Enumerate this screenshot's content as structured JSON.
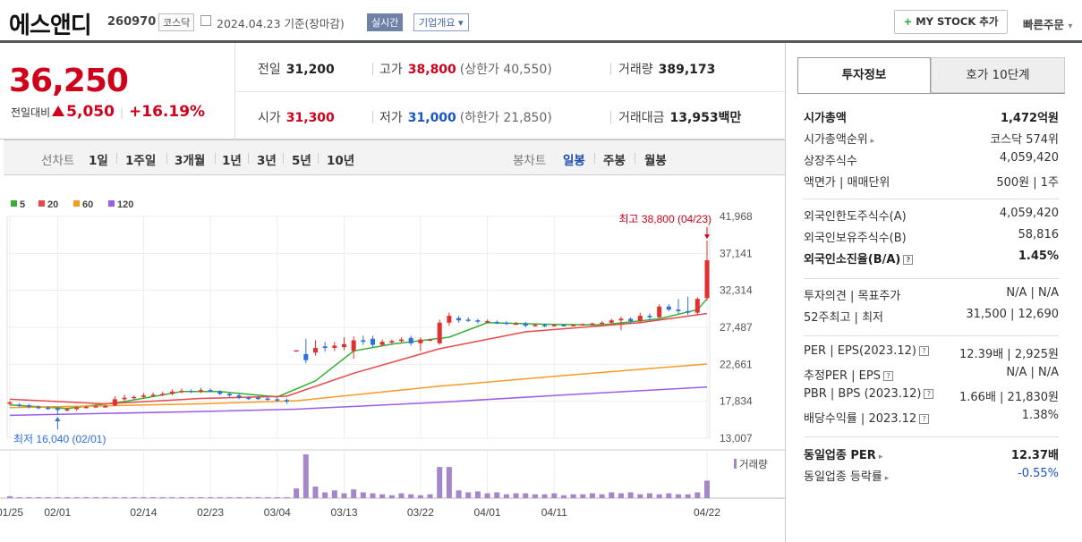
{
  "header": {
    "name": "에스앤디",
    "code": "260970",
    "market": "코스닥",
    "date": "2024.04.23 기준(장마감)",
    "realtime": "실시간",
    "overview": "기업개요",
    "my_stock": "MY STOCK 추가",
    "quick_order": "빠른주문"
  },
  "price": {
    "current": "36,250",
    "change_label": "전일대비",
    "change": "5,050",
    "change_pct": "+16.19%",
    "prev_close_label": "전일",
    "prev_close": "31,200",
    "high_label": "고가",
    "high": "38,800",
    "upper_limit": "(상한가 40,550)",
    "volume_label": "거래량",
    "volume": "389,173",
    "open_label": "시가",
    "open": "31,300",
    "low_label": "저가",
    "low": "31,000",
    "lower_limit": "(하한가 21,850)",
    "value_label": "거래대금",
    "value": "13,953",
    "value_unit": "백만"
  },
  "tabs": {
    "line_label": "선차트",
    "periods": [
      "1일",
      "1주일",
      "3개월",
      "1년",
      "3년",
      "5년",
      "10년"
    ],
    "candle_label": "봉차트",
    "candles": [
      "일봉",
      "주봉",
      "월봉"
    ],
    "selected_candle": "일봉"
  },
  "chart_data": {
    "type": "candlestick",
    "legend": [
      "5",
      "20",
      "60",
      "120"
    ],
    "legend_colors": [
      "#35b035",
      "#e84848",
      "#f59a23",
      "#9b5de5"
    ],
    "y_ticks": [
      "41,968",
      "37,141",
      "32,314",
      "27,487",
      "22,661",
      "17,834",
      "13,007"
    ],
    "ylim": [
      13007,
      41968
    ],
    "x_ticks": [
      "01/25",
      "02/01",
      "02/14",
      "02/23",
      "03/04",
      "03/13",
      "03/22",
      "04/01",
      "04/11",
      "04/22"
    ],
    "high_annotation": "최고 38,800 (04/23)",
    "low_annotation": "최저 16,040 (02/01)",
    "volume_label": "거래량",
    "candles": [
      {
        "o": 17500,
        "c": 17700,
        "h": 17900,
        "l": 17300
      },
      {
        "o": 17400,
        "c": 17300,
        "h": 17600,
        "l": 17100
      },
      {
        "o": 17300,
        "c": 17100,
        "h": 17500,
        "l": 16900
      },
      {
        "o": 17100,
        "c": 17000,
        "h": 17300,
        "l": 16800
      },
      {
        "o": 17000,
        "c": 16900,
        "h": 17200,
        "l": 16700
      },
      {
        "o": 16900,
        "c": 16700,
        "h": 17100,
        "l": 16040
      },
      {
        "o": 16700,
        "c": 16800,
        "h": 17000,
        "l": 16500
      },
      {
        "o": 16800,
        "c": 17000,
        "h": 17200,
        "l": 16600
      },
      {
        "o": 17000,
        "c": 17100,
        "h": 17300,
        "l": 16900
      },
      {
        "o": 17100,
        "c": 17200,
        "h": 17400,
        "l": 17000
      },
      {
        "o": 17200,
        "c": 17200,
        "h": 17400,
        "l": 17000
      },
      {
        "o": 17300,
        "c": 18100,
        "h": 18500,
        "l": 17200
      },
      {
        "o": 18100,
        "c": 18300,
        "h": 18700,
        "l": 17900
      },
      {
        "o": 18300,
        "c": 18400,
        "h": 18600,
        "l": 18100
      },
      {
        "o": 18400,
        "c": 18600,
        "h": 18900,
        "l": 18200
      },
      {
        "o": 18600,
        "c": 18700,
        "h": 19000,
        "l": 18400
      },
      {
        "o": 18700,
        "c": 18800,
        "h": 19100,
        "l": 18500
      },
      {
        "o": 18800,
        "c": 19100,
        "h": 19400,
        "l": 18600
      },
      {
        "o": 19100,
        "c": 19200,
        "h": 19500,
        "l": 18900
      },
      {
        "o": 19200,
        "c": 19100,
        "h": 19400,
        "l": 18900
      },
      {
        "o": 19100,
        "c": 19300,
        "h": 19600,
        "l": 18900
      },
      {
        "o": 19300,
        "c": 19200,
        "h": 19500,
        "l": 19000
      },
      {
        "o": 19100,
        "c": 18800,
        "h": 19300,
        "l": 18600
      },
      {
        "o": 18800,
        "c": 18600,
        "h": 19000,
        "l": 18400
      },
      {
        "o": 18600,
        "c": 18300,
        "h": 18800,
        "l": 18100
      },
      {
        "o": 18300,
        "c": 18200,
        "h": 18500,
        "l": 18000
      },
      {
        "o": 18300,
        "c": 18200,
        "h": 18500,
        "l": 18000
      },
      {
        "o": 18200,
        "c": 18100,
        "h": 18400,
        "l": 17900
      },
      {
        "o": 18100,
        "c": 18000,
        "h": 18300,
        "l": 17800
      },
      {
        "o": 18000,
        "c": 17800,
        "h": 18200,
        "l": 17500
      },
      {
        "o": 24500,
        "c": 24500,
        "h": 24500,
        "l": 24500
      },
      {
        "o": 24000,
        "c": 23200,
        "h": 26000,
        "l": 22800
      },
      {
        "o": 24200,
        "c": 24800,
        "h": 25800,
        "l": 23800
      },
      {
        "o": 25000,
        "c": 24800,
        "h": 25600,
        "l": 24300
      },
      {
        "o": 24800,
        "c": 25100,
        "h": 25600,
        "l": 24400
      },
      {
        "o": 24900,
        "c": 25300,
        "h": 26200,
        "l": 24500
      },
      {
        "o": 24400,
        "c": 25800,
        "h": 26300,
        "l": 23400
      },
      {
        "o": 25800,
        "c": 25600,
        "h": 26400,
        "l": 25200
      },
      {
        "o": 26000,
        "c": 25200,
        "h": 26400,
        "l": 24900
      },
      {
        "o": 25200,
        "c": 25600,
        "h": 25900,
        "l": 25000
      },
      {
        "o": 25500,
        "c": 25700,
        "h": 25900,
        "l": 25300
      },
      {
        "o": 25700,
        "c": 25900,
        "h": 26200,
        "l": 25500
      },
      {
        "o": 26100,
        "c": 25400,
        "h": 26400,
        "l": 25100
      },
      {
        "o": 25400,
        "c": 25900,
        "h": 26200,
        "l": 24400
      },
      {
        "o": 25900,
        "c": 25900,
        "h": 26000,
        "l": 25800
      },
      {
        "o": 25400,
        "c": 28100,
        "h": 28500,
        "l": 25200
      },
      {
        "o": 28100,
        "c": 29000,
        "h": 29400,
        "l": 27700
      },
      {
        "o": 28700,
        "c": 28400,
        "h": 29000,
        "l": 28100
      },
      {
        "o": 28500,
        "c": 28400,
        "h": 28800,
        "l": 28200
      },
      {
        "o": 28400,
        "c": 28300,
        "h": 28600,
        "l": 28000
      },
      {
        "o": 28300,
        "c": 28300,
        "h": 28500,
        "l": 28100
      },
      {
        "o": 28200,
        "c": 28100,
        "h": 28400,
        "l": 27900
      },
      {
        "o": 28100,
        "c": 28000,
        "h": 28300,
        "l": 27800
      },
      {
        "o": 28000,
        "c": 28000,
        "h": 28200,
        "l": 27800
      },
      {
        "o": 28000,
        "c": 27700,
        "h": 28200,
        "l": 27500
      },
      {
        "o": 27700,
        "c": 27800,
        "h": 28000,
        "l": 27600
      },
      {
        "o": 27800,
        "c": 27700,
        "h": 28000,
        "l": 27500
      },
      {
        "o": 27700,
        "c": 27800,
        "h": 27900,
        "l": 27600
      },
      {
        "o": 27800,
        "c": 27700,
        "h": 27900,
        "l": 27600
      },
      {
        "o": 27700,
        "c": 27800,
        "h": 27900,
        "l": 27600
      },
      {
        "o": 27800,
        "c": 27900,
        "h": 28000,
        "l": 27700
      },
      {
        "o": 27900,
        "c": 28000,
        "h": 28100,
        "l": 27800
      },
      {
        "o": 28000,
        "c": 28100,
        "h": 28300,
        "l": 27900
      },
      {
        "o": 28100,
        "c": 28400,
        "h": 28600,
        "l": 28000
      },
      {
        "o": 28400,
        "c": 28600,
        "h": 28900,
        "l": 27100
      },
      {
        "o": 28600,
        "c": 28300,
        "h": 28800,
        "l": 28000
      },
      {
        "o": 28300,
        "c": 29000,
        "h": 29400,
        "l": 28100
      },
      {
        "o": 29000,
        "c": 28800,
        "h": 29300,
        "l": 28400
      },
      {
        "o": 28800,
        "c": 30200,
        "h": 30500,
        "l": 28700
      },
      {
        "o": 30200,
        "c": 29800,
        "h": 30500,
        "l": 29600
      },
      {
        "o": 29800,
        "c": 29600,
        "h": 31200,
        "l": 29300
      },
      {
        "o": 29600,
        "c": 29400,
        "h": 31500,
        "l": 29100
      },
      {
        "o": 29400,
        "c": 31200,
        "h": 31400,
        "l": 29100
      },
      {
        "o": 31300,
        "c": 36250,
        "h": 38800,
        "l": 31000
      }
    ],
    "ma": {
      "5": [
        [
          0,
          17350
        ],
        [
          6,
          16900
        ],
        [
          12,
          17800
        ],
        [
          18,
          19100
        ],
        [
          22,
          19100
        ],
        [
          28,
          18400
        ],
        [
          32,
          20500
        ],
        [
          36,
          24400
        ],
        [
          40,
          25300
        ],
        [
          46,
          26200
        ],
        [
          50,
          28100
        ],
        [
          56,
          27900
        ],
        [
          62,
          27800
        ],
        [
          68,
          28600
        ],
        [
          72,
          29800
        ],
        [
          73,
          31200
        ]
      ],
      "20": [
        [
          0,
          18100
        ],
        [
          10,
          17500
        ],
        [
          20,
          18200
        ],
        [
          29,
          18500
        ],
        [
          36,
          21500
        ],
        [
          45,
          24700
        ],
        [
          54,
          26900
        ],
        [
          66,
          28100
        ],
        [
          73,
          29300
        ]
      ],
      "60": [
        [
          0,
          17000
        ],
        [
          20,
          17500
        ],
        [
          30,
          17900
        ],
        [
          45,
          19800
        ],
        [
          60,
          21400
        ],
        [
          73,
          22700
        ]
      ],
      "120": [
        [
          0,
          16000
        ],
        [
          20,
          16500
        ],
        [
          30,
          16800
        ],
        [
          45,
          17700
        ],
        [
          60,
          18800
        ],
        [
          73,
          19700
        ]
      ]
    },
    "volume": [
      2,
      1,
      1,
      1,
      1,
      1,
      1,
      1,
      1,
      1,
      1,
      1,
      1,
      1,
      1,
      1,
      1,
      1,
      1,
      1,
      1,
      1,
      1,
      1,
      1,
      1,
      1,
      1,
      1,
      1,
      10,
      45,
      12,
      6,
      8,
      5,
      9,
      6,
      5,
      4,
      3,
      5,
      4,
      3,
      4,
      32,
      32,
      8,
      6,
      7,
      5,
      6,
      4,
      5,
      5,
      4,
      4,
      5,
      3,
      4,
      4,
      5,
      4,
      6,
      5,
      6,
      4,
      5,
      4,
      5,
      4,
      4,
      6,
      18
    ]
  },
  "right_panel": {
    "tab_active": "투자정보",
    "tab_other": "호가 10단계",
    "rows1": [
      {
        "k": "시가총액",
        "v": "1,472억원",
        "bold": true
      },
      {
        "k": "시가총액순위",
        "v": "코스닥 574위"
      },
      {
        "k": "상장주식수",
        "v": "4,059,420"
      },
      {
        "k": "액면가 | 매매단위",
        "v": "500원 | 1주"
      }
    ],
    "rows2": [
      {
        "k": "외국인한도주식수(A)",
        "v": "4,059,420"
      },
      {
        "k": "외국인보유주식수(B)",
        "v": "58,816"
      },
      {
        "k": "외국인소진율(B/A)",
        "v": "1.45%",
        "bold": true
      }
    ],
    "rows3": [
      {
        "k": "투자의견 | 목표주가",
        "v": "N/A | N/A"
      },
      {
        "k": "52주최고 | 최저",
        "v": "31,500 | 12,690"
      }
    ],
    "rows4": [
      {
        "k": "PER | EPS(2023.12)",
        "v": "12.39배 | 2,925원"
      },
      {
        "k": "추정PER | EPS",
        "v": "N/A | N/A"
      },
      {
        "k": "PBR | BPS (2023.12)",
        "v": "1.66배 | 21,830원"
      },
      {
        "k": "배당수익률 | 2023.12",
        "v": "1.38%"
      }
    ],
    "rows5": [
      {
        "k": "동일업종 PER",
        "v": "12.37배",
        "bold": true
      },
      {
        "k": "동일업종 등락률",
        "v": "-0.55%",
        "blue": true
      }
    ]
  }
}
